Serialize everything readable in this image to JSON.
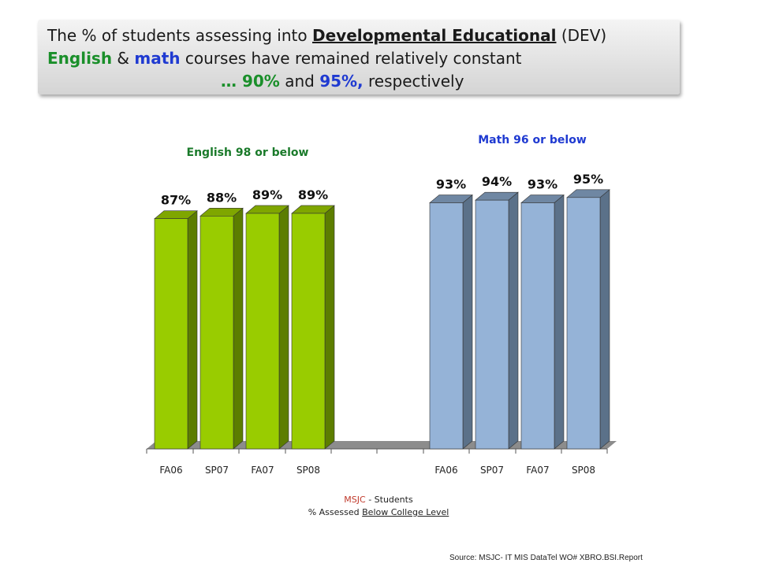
{
  "title": {
    "l1_a": "The % of students assessing into ",
    "l1_b": "Developmental Educational",
    "l1_c": " (DEV)",
    "l2_a": "English",
    "l2_b": " & ",
    "l2_c": "math",
    "l2_d": " courses have remained relatively constant",
    "l3_a": "… ",
    "l3_b": "90%",
    "l3_c": " and ",
    "l3_d": "95%,",
    "l3_e": " respectively"
  },
  "caption": {
    "line1_a": "MSJC",
    "line1_b": " - Students",
    "line2_a": "%  Assessed ",
    "line2_b": "Below College Level"
  },
  "source": "Source: MSJC- IT MIS DataTel  WO# XBRO.BSI.Report",
  "colors": {
    "english_front": "#99cc00",
    "english_side": "#5c7d00",
    "english_top": "#7fa600",
    "math_front": "#95b3d7",
    "math_side": "#5b7189",
    "math_top": "#6f87a3",
    "english_title": "#1a7a2a",
    "math_title": "#1f3ad1"
  },
  "chart_data": {
    "type": "bar",
    "ylim": [
      0,
      100
    ],
    "groups": [
      {
        "name": "English 98 or below",
        "categories": [
          "FA06",
          "SP07",
          "FA07",
          "SP08"
        ],
        "values": [
          87,
          88,
          89,
          89
        ],
        "labels": [
          "87%",
          "88%",
          "89%",
          "89%"
        ]
      },
      {
        "name": "Math 96 or below",
        "categories": [
          "FA06",
          "SP07",
          "FA07",
          "SP08"
        ],
        "values": [
          93,
          94,
          93,
          95
        ],
        "labels": [
          "93%",
          "94%",
          "93%",
          "95%"
        ]
      }
    ]
  }
}
